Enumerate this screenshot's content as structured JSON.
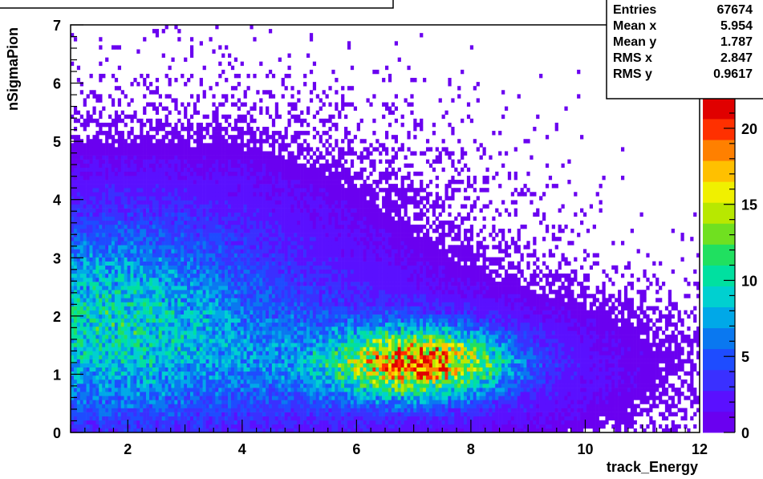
{
  "chart_data": {
    "type": "heatmap",
    "title": "",
    "xlabel": "track_Energy",
    "ylabel": "nSigmaPion",
    "xlim": [
      1,
      12
    ],
    "ylim": [
      0,
      7
    ],
    "x_ticks": [
      "2",
      "4",
      "6",
      "8",
      "10",
      "12"
    ],
    "y_ticks": [
      "0",
      "1",
      "2",
      "3",
      "4",
      "5",
      "6",
      "7"
    ],
    "colorbar": {
      "min": 0,
      "max": 22,
      "ticks": [
        "0",
        "5",
        "10",
        "15",
        "20"
      ]
    },
    "stats": {
      "rows": [
        {
          "label": "Entries",
          "value": "67674"
        },
        {
          "label": "Mean x",
          "value": "5.954"
        },
        {
          "label": "Mean y",
          "value": "1.787"
        },
        {
          "label": "RMS x",
          "value": "2.847"
        },
        {
          "label": "RMS y",
          "value": "0.9617"
        }
      ]
    },
    "density_components": [
      {
        "x": 1.3,
        "y": 1.9,
        "sx": 1.8,
        "sy": 1.25,
        "peak": 7
      },
      {
        "x": 7.1,
        "y": 1.2,
        "sx": 1.05,
        "sy": 0.4,
        "peak": 15
      },
      {
        "x": 6.0,
        "y": 1.1,
        "sx": 3.2,
        "sy": 0.85,
        "peak": 3.5
      },
      {
        "x": 3.5,
        "y": 2.5,
        "sx": 2.5,
        "sy": 1.5,
        "peak": 2.5
      }
    ],
    "colors": [
      "#6a00f0",
      "#5a10ff",
      "#3a30ff",
      "#1e4cff",
      "#0a78f0",
      "#00a8e8",
      "#00d0d0",
      "#00e0a0",
      "#20e060",
      "#70e020",
      "#b8e800",
      "#f0f000",
      "#ffc000",
      "#ff8000",
      "#ff3000",
      "#e00000"
    ]
  }
}
